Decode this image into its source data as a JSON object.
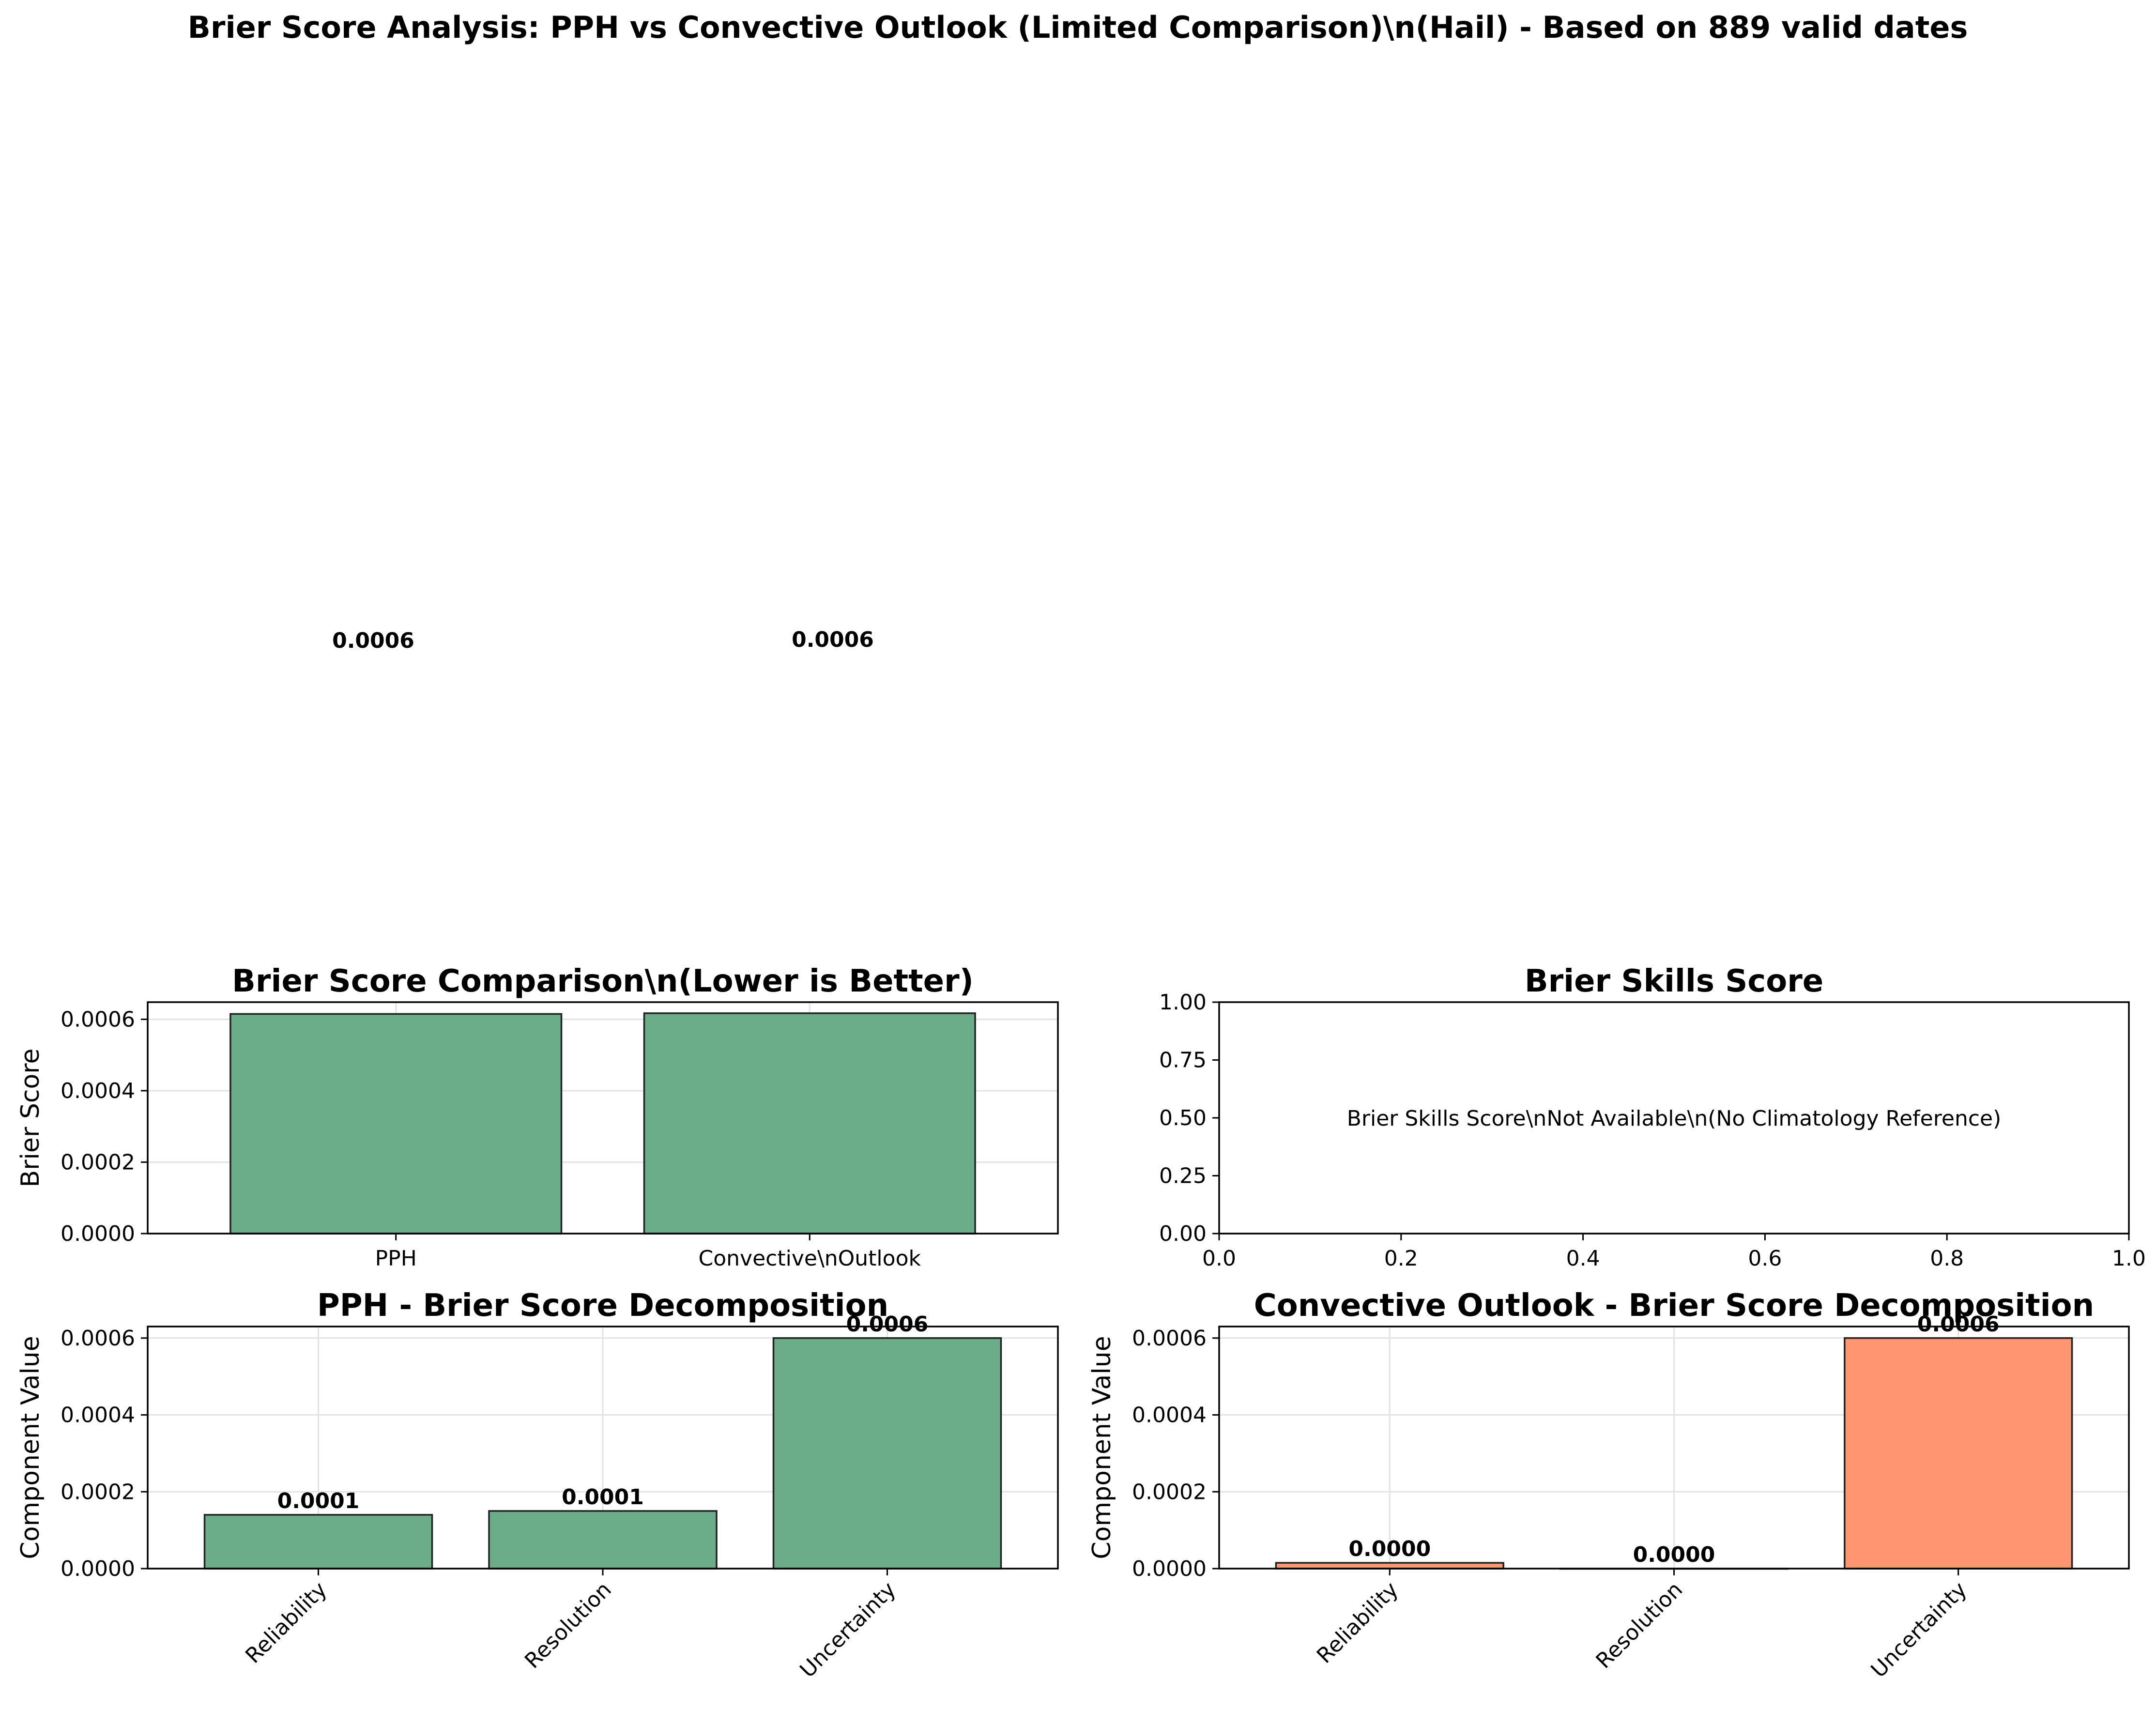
{
  "suptitle": "Brier Score Analysis: PPH vs Convective Outlook (Limited Comparison)\\n(Hail) - Based on 889 valid dates",
  "colors": {
    "pph": "#6aad88",
    "outlook": "#ff9671",
    "edge": "#222222",
    "grid": "#e3e3e3"
  },
  "stray_labels": [
    "0.0006",
    "0.0006"
  ],
  "chart_data": [
    {
      "id": "comparison",
      "type": "bar",
      "title": "Brier Score Comparison\\n(Lower is Better)",
      "xlabel": "",
      "ylabel": "Brier Score",
      "categories": [
        "PPH",
        "Convective\\nOutlook"
      ],
      "values": [
        0.000615,
        0.000617
      ],
      "value_labels": [
        "0.0006",
        "0.0006"
      ],
      "ylim": [
        0,
        0.000648
      ],
      "yticks": [
        0,
        0.0002,
        0.0004,
        0.0006
      ],
      "ytick_labels": [
        "0.0000",
        "0.0002",
        "0.0004",
        "0.0006"
      ],
      "grid": true
    },
    {
      "id": "skills",
      "type": "bar",
      "title": "Brier Skills Score",
      "xlabel": "",
      "ylabel": "",
      "message": "Brier Skills Score\\nNot Available\\n(No Climatology Reference)",
      "xlim": [
        0,
        1
      ],
      "ylim": [
        0,
        1
      ],
      "xticks": [
        0,
        0.2,
        0.4,
        0.6,
        0.8,
        1.0
      ],
      "xtick_labels": [
        "0.0",
        "0.2",
        "0.4",
        "0.6",
        "0.8",
        "1.0"
      ],
      "yticks": [
        0,
        0.25,
        0.5,
        0.75,
        1.0
      ],
      "ytick_labels": [
        "0.00",
        "0.25",
        "0.50",
        "0.75",
        "1.00"
      ],
      "grid": false
    },
    {
      "id": "pph_decomp",
      "type": "bar",
      "title": "PPH - Brier Score Decomposition",
      "xlabel": "",
      "ylabel": "Component Value",
      "categories": [
        "Reliability",
        "Resolution",
        "Uncertainty"
      ],
      "values": [
        0.00014,
        0.00015,
        0.0006
      ],
      "value_labels": [
        "0.0001",
        "0.0001",
        "0.0006"
      ],
      "ylim": [
        0,
        0.00063
      ],
      "yticks": [
        0,
        0.0002,
        0.0004,
        0.0006
      ],
      "ytick_labels": [
        "0.0000",
        "0.0002",
        "0.0004",
        "0.0006"
      ],
      "grid": true
    },
    {
      "id": "outlook_decomp",
      "type": "bar",
      "title": "Convective Outlook - Brier Score Decomposition",
      "xlabel": "",
      "ylabel": "Component Value",
      "categories": [
        "Reliability",
        "Resolution",
        "Uncertainty"
      ],
      "values": [
        1.5e-05,
        0.0,
        0.0006
      ],
      "value_labels": [
        "0.0000",
        "0.0000",
        "0.0006"
      ],
      "ylim": [
        0,
        0.00063
      ],
      "yticks": [
        0,
        0.0002,
        0.0004,
        0.0006
      ],
      "ytick_labels": [
        "0.0000",
        "0.0002",
        "0.0004",
        "0.0006"
      ],
      "grid": true
    }
  ]
}
